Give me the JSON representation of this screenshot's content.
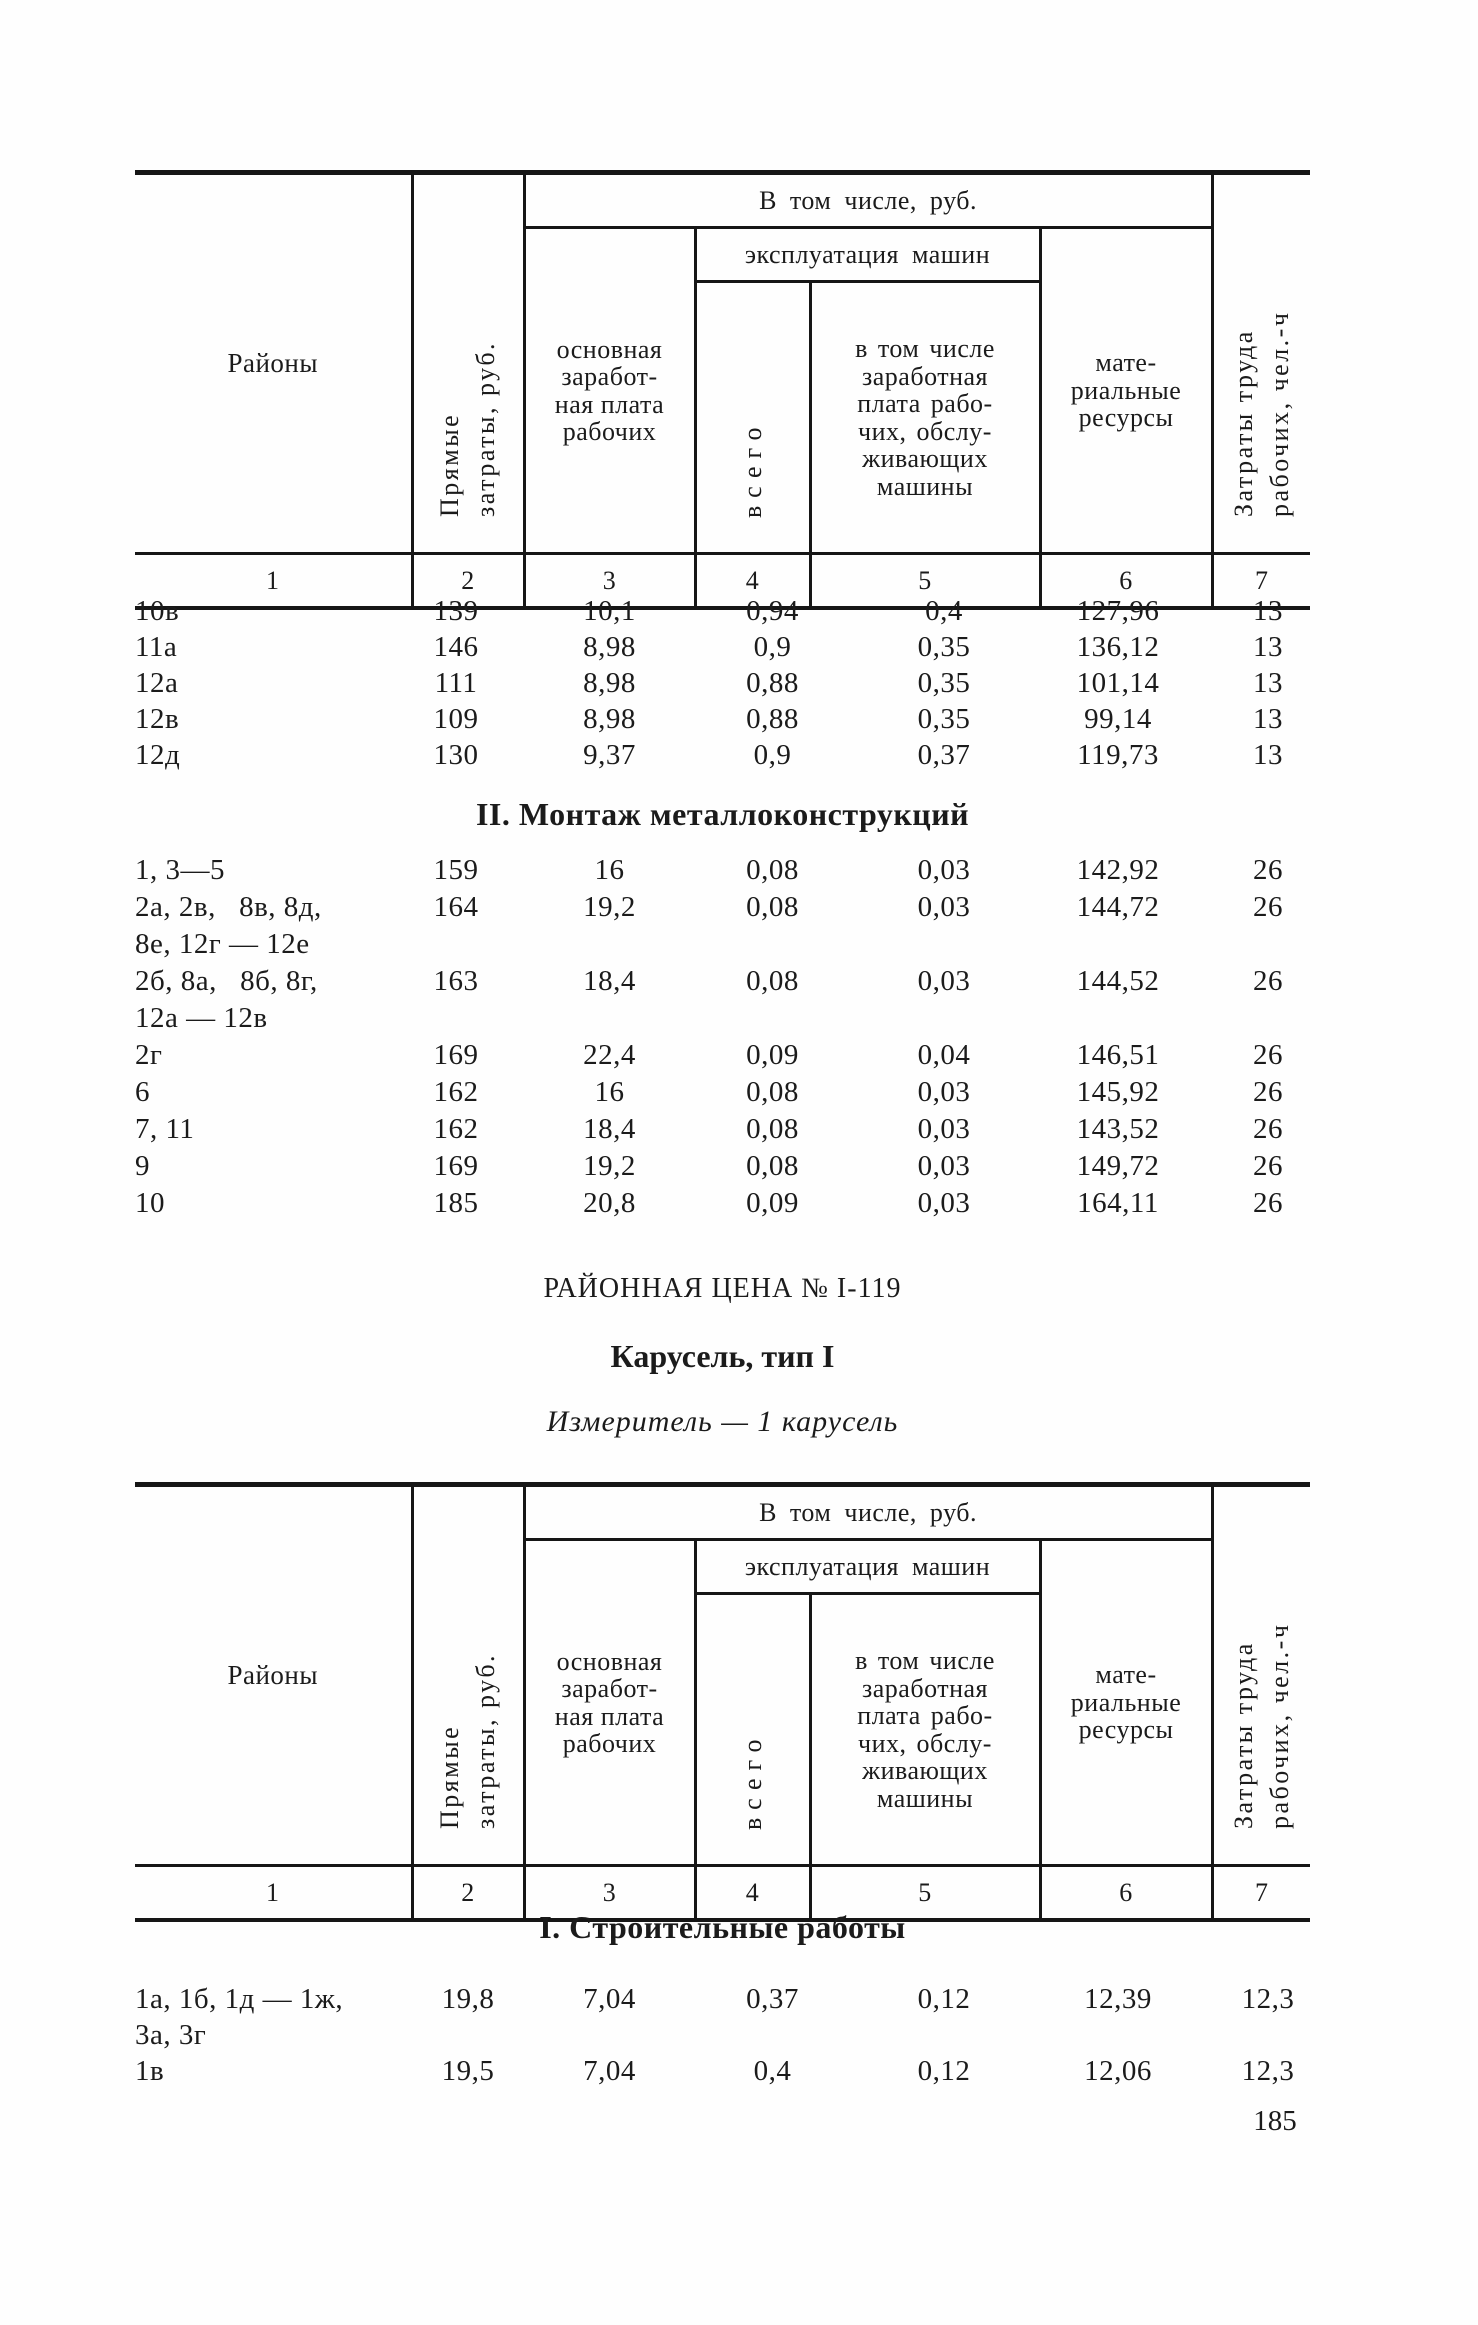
{
  "page": {
    "number": "185",
    "ink_color": "#1b1b1b",
    "paper_color": "#fefefe"
  },
  "header": {
    "col1": "Районы",
    "col2": "Прямые\nзатраты, руб.",
    "group": "В том числе, руб.",
    "col3": "основная\nзаработ-\nная плата\nрабочих",
    "subgroup": "эксплуатация машин",
    "col4": "всего",
    "col5": "в том числе\nзаработная\nплата рабо-\nчих, обслу-\nживающих\nмашины",
    "col6": "мате-\nриальные\nресурсы",
    "col7": "Затраты труда\nрабочих, чел.-ч",
    "numbers": [
      "1",
      "2",
      "3",
      "4",
      "5",
      "6",
      "7"
    ]
  },
  "continuation_section": {
    "rows": [
      {
        "label": "10в",
        "values": [
          "139",
          "10,1",
          "0,94",
          "0,4",
          "127,96",
          "13"
        ]
      },
      {
        "label": "11а",
        "values": [
          "146",
          "8,98",
          "0,9",
          "0,35",
          "136,12",
          "13"
        ]
      },
      {
        "label": "12а",
        "values": [
          "111",
          "8,98",
          "0,88",
          "0,35",
          "101,14",
          "13"
        ]
      },
      {
        "label": "12в",
        "values": [
          "109",
          "8,98",
          "0,88",
          "0,35",
          "99,14",
          "13"
        ]
      },
      {
        "label": "12д",
        "values": [
          "130",
          "9,37",
          "0,9",
          "0,37",
          "119,73",
          "13"
        ]
      }
    ]
  },
  "section_montazh": {
    "heading": "II. Монтаж металлоконструкций",
    "rows": [
      {
        "label": "1, 3—5",
        "values": [
          "159",
          "16",
          "0,08",
          "0,03",
          "142,92",
          "26"
        ]
      },
      {
        "label": "2а, 2в,   8в, 8д,",
        "values": [
          "164",
          "19,2",
          "0,08",
          "0,03",
          "144,72",
          "26"
        ]
      },
      {
        "label": "8е, 12г — 12е",
        "values": []
      },
      {
        "label": "2б, 8а,   8б, 8г,",
        "values": [
          "163",
          "18,4",
          "0,08",
          "0,03",
          "144,52",
          "26"
        ]
      },
      {
        "label": "12а — 12в",
        "values": []
      },
      {
        "label": "2г",
        "values": [
          "169",
          "22,4",
          "0,09",
          "0,04",
          "146,51",
          "26"
        ]
      },
      {
        "label": "6",
        "values": [
          "162",
          "16",
          "0,08",
          "0,03",
          "145,92",
          "26"
        ]
      },
      {
        "label": "7, 11",
        "values": [
          "162",
          "18,4",
          "0,08",
          "0,03",
          "143,52",
          "26"
        ]
      },
      {
        "label": "9",
        "values": [
          "169",
          "19,2",
          "0,08",
          "0,03",
          "149,72",
          "26"
        ]
      },
      {
        "label": "10",
        "values": [
          "185",
          "20,8",
          "0,09",
          "0,03",
          "164,11",
          "26"
        ]
      }
    ]
  },
  "price_block": {
    "price_title": "РАЙОННАЯ ЦЕНА № I-119",
    "item_title": "Карусель, тип I",
    "measure": "Измеритель — 1 карусель"
  },
  "section_stroitelnye": {
    "heading": "I. Строительные работы",
    "rows": [
      {
        "label": "1а, 1б, 1д — 1ж,",
        "values": [
          "19,8",
          "7,04",
          "0,37",
          "0,12",
          "12,39",
          "12,3"
        ]
      },
      {
        "label": "3а, 3г",
        "values": []
      },
      {
        "label": "1в",
        "values": [
          "19,5",
          "7,04",
          "0,4",
          "0,12",
          "12,06",
          "12,3"
        ]
      }
    ]
  }
}
